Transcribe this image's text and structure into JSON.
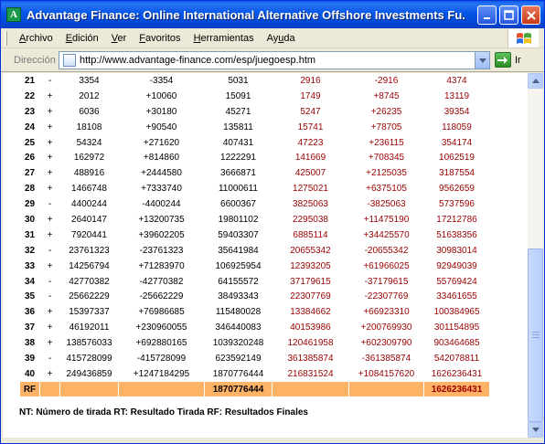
{
  "window": {
    "title": "Advantage Finance: Online International Alternative Offshore Investments Fu..."
  },
  "menu": [
    {
      "pre": "",
      "u": "A",
      "post": "rchivo"
    },
    {
      "pre": "",
      "u": "E",
      "post": "dición"
    },
    {
      "pre": "",
      "u": "V",
      "post": "er"
    },
    {
      "pre": "",
      "u": "F",
      "post": "avoritos"
    },
    {
      "pre": "",
      "u": "H",
      "post": "erramientas"
    },
    {
      "pre": "Ay",
      "u": "u",
      "post": "da"
    }
  ],
  "address": {
    "label": "Dirección",
    "url": "http://www.advantage-finance.com/esp/juegoesp.htm",
    "go_label": "Ir"
  },
  "rows": [
    {
      "n": "21",
      "s": "-",
      "a": "3354",
      "b": "-3354",
      "c": "5031",
      "d": "2916",
      "e": "-2916",
      "f": "4374"
    },
    {
      "n": "22",
      "s": "+",
      "a": "2012",
      "b": "+10060",
      "c": "15091",
      "d": "1749",
      "e": "+8745",
      "f": "13119"
    },
    {
      "n": "23",
      "s": "+",
      "a": "6036",
      "b": "+30180",
      "c": "45271",
      "d": "5247",
      "e": "+26235",
      "f": "39354"
    },
    {
      "n": "24",
      "s": "+",
      "a": "18108",
      "b": "+90540",
      "c": "135811",
      "d": "15741",
      "e": "+78705",
      "f": "118059"
    },
    {
      "n": "25",
      "s": "+",
      "a": "54324",
      "b": "+271620",
      "c": "407431",
      "d": "47223",
      "e": "+236115",
      "f": "354174"
    },
    {
      "n": "26",
      "s": "+",
      "a": "162972",
      "b": "+814860",
      "c": "1222291",
      "d": "141669",
      "e": "+708345",
      "f": "1062519"
    },
    {
      "n": "27",
      "s": "+",
      "a": "488916",
      "b": "+2444580",
      "c": "3666871",
      "d": "425007",
      "e": "+2125035",
      "f": "3187554"
    },
    {
      "n": "28",
      "s": "+",
      "a": "1466748",
      "b": "+7333740",
      "c": "11000611",
      "d": "1275021",
      "e": "+6375105",
      "f": "9562659"
    },
    {
      "n": "29",
      "s": "-",
      "a": "4400244",
      "b": "-4400244",
      "c": "6600367",
      "d": "3825063",
      "e": "-3825063",
      "f": "5737596"
    },
    {
      "n": "30",
      "s": "+",
      "a": "2640147",
      "b": "+13200735",
      "c": "19801102",
      "d": "2295038",
      "e": "+11475190",
      "f": "17212786"
    },
    {
      "n": "31",
      "s": "+",
      "a": "7920441",
      "b": "+39602205",
      "c": "59403307",
      "d": "6885114",
      "e": "+34425570",
      "f": "51638356"
    },
    {
      "n": "32",
      "s": "-",
      "a": "23761323",
      "b": "-23761323",
      "c": "35641984",
      "d": "20655342",
      "e": "-20655342",
      "f": "30983014"
    },
    {
      "n": "33",
      "s": "+",
      "a": "14256794",
      "b": "+71283970",
      "c": "106925954",
      "d": "12393205",
      "e": "+61966025",
      "f": "92949039"
    },
    {
      "n": "34",
      "s": "-",
      "a": "42770382",
      "b": "-42770382",
      "c": "64155572",
      "d": "37179615",
      "e": "-37179615",
      "f": "55769424"
    },
    {
      "n": "35",
      "s": "-",
      "a": "25662229",
      "b": "-25662229",
      "c": "38493343",
      "d": "22307769",
      "e": "-22307769",
      "f": "33461655"
    },
    {
      "n": "36",
      "s": "+",
      "a": "15397337",
      "b": "+76986685",
      "c": "115480028",
      "d": "13384662",
      "e": "+66923310",
      "f": "100384965"
    },
    {
      "n": "37",
      "s": "+",
      "a": "46192011",
      "b": "+230960055",
      "c": "346440083",
      "d": "40153986",
      "e": "+200769930",
      "f": "301154895"
    },
    {
      "n": "38",
      "s": "+",
      "a": "138576033",
      "b": "+692880165",
      "c": "1039320248",
      "d": "120461958",
      "e": "+602309790",
      "f": "903464685"
    },
    {
      "n": "39",
      "s": "-",
      "a": "415728099",
      "b": "-415728099",
      "c": "623592149",
      "d": "361385874",
      "e": "-361385874",
      "f": "542078811"
    },
    {
      "n": "40",
      "s": "+",
      "a": "249436859",
      "b": "+1247184295",
      "c": "1870776444",
      "d": "216831524",
      "e": "+1084157620",
      "f": "1626236431"
    }
  ],
  "rf": {
    "label": "RF",
    "c": "1870776444",
    "f": "1626236431"
  },
  "legend": "NT: Número de tirada RT: Resultado Tirada RF: Resultados Finales"
}
